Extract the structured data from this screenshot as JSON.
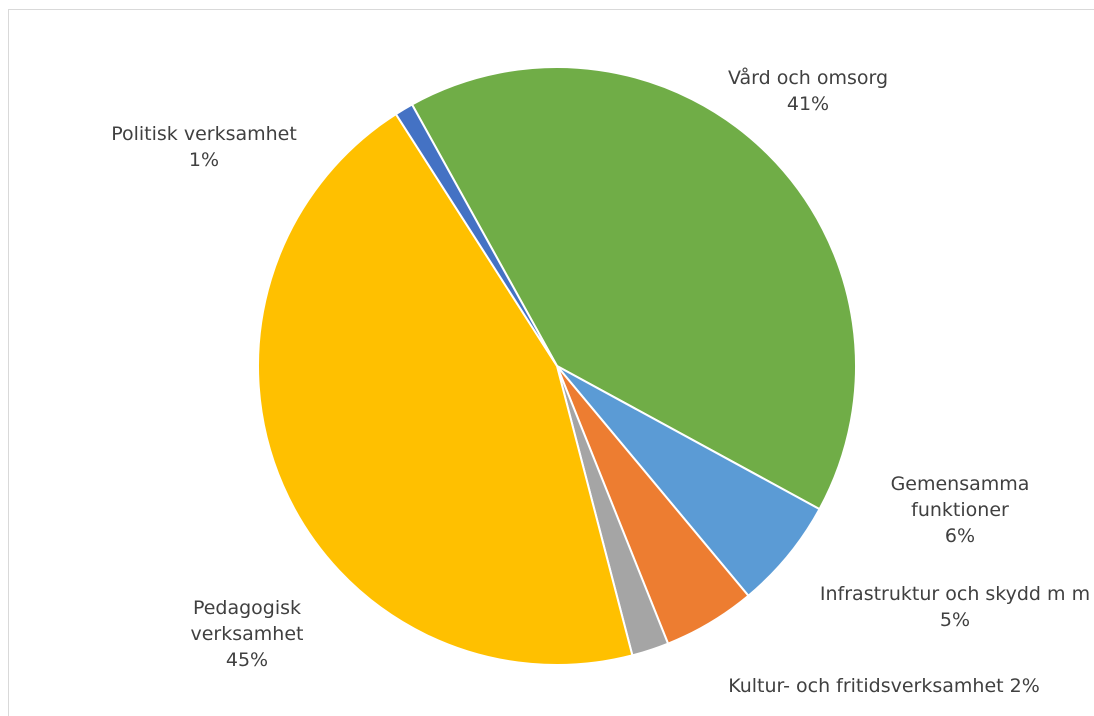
{
  "chart_data": {
    "type": "pie",
    "title": "",
    "legend": "none",
    "slices": [
      {
        "name": "Vård och omsorg",
        "value": 41,
        "label_lines": [
          "Vård och omsorg",
          "41%"
        ],
        "color": "#70ad47"
      },
      {
        "name": "Gemensamma funktioner",
        "value": 6,
        "label_lines": [
          "Gemensamma",
          "funktioner",
          "6%"
        ],
        "color": "#5b9bd5"
      },
      {
        "name": "Infrastruktur och skydd m m",
        "value": 5,
        "label_lines": [
          "Infrastruktur och skydd m m",
          "5%"
        ],
        "color": "#ed7d31"
      },
      {
        "name": "Kultur- och fritidsverksamhet",
        "value": 2,
        "label_lines": [
          "Kultur- och fritidsverksamhet 2%"
        ],
        "color": "#a5a5a5"
      },
      {
        "name": "Pedagogisk verksamhet",
        "value": 45,
        "label_lines": [
          "Pedagogisk",
          "verksamhet",
          "45%"
        ],
        "color": "#ffc000"
      },
      {
        "name": "Politisk verksamhet",
        "value": 1,
        "label_lines": [
          "Politisk verksamhet",
          "1%"
        ],
        "color": "#4472c4"
      }
    ]
  }
}
